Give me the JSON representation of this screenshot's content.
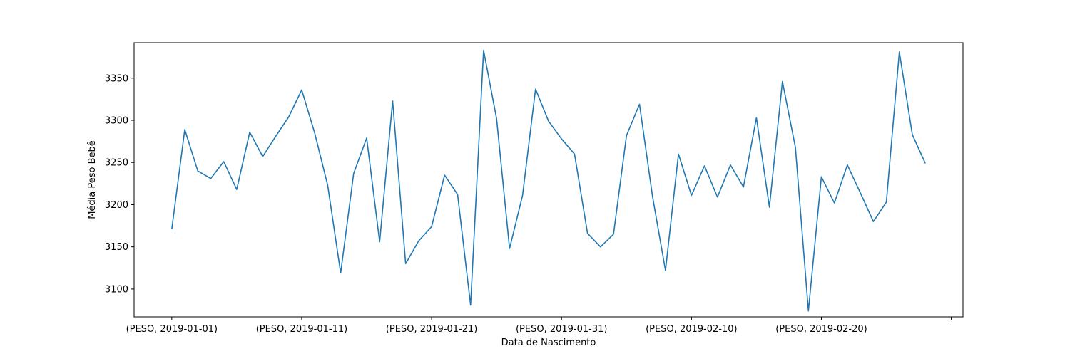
{
  "chart_data": {
    "type": "line",
    "title": "",
    "xlabel": "Data de Nascimento",
    "ylabel": "Média Peso Bebê",
    "xlim": [
      -2.9,
      60.9
    ],
    "ylim": [
      3067,
      3392
    ],
    "x_ticks": [
      {
        "x": 0,
        "label": "(PESO, 2019-01-01)"
      },
      {
        "x": 10,
        "label": "(PESO, 2019-01-11)"
      },
      {
        "x": 20,
        "label": "(PESO, 2019-01-21)"
      },
      {
        "x": 30,
        "label": "(PESO, 2019-01-31)"
      },
      {
        "x": 40,
        "label": "(PESO, 2019-02-10)"
      },
      {
        "x": 50,
        "label": "(PESO, 2019-02-20)"
      },
      {
        "x": 60,
        "label": ""
      }
    ],
    "y_ticks": [
      3100,
      3150,
      3200,
      3250,
      3300,
      3350
    ],
    "color": "#1f77b4",
    "series": [
      {
        "name": "PESO",
        "values": [
          3171,
          3289,
          3240,
          3231,
          3251,
          3218,
          3286,
          3257,
          3281,
          3304,
          3336,
          3285,
          3223,
          3119,
          3237,
          3279,
          3156,
          3323,
          3130,
          3157,
          3174,
          3235,
          3212,
          3081,
          3383,
          3302,
          3148,
          3211,
          3337,
          3299,
          3278,
          3260,
          3166,
          3150,
          3165,
          3282,
          3319,
          3210,
          3122,
          3260,
          3211,
          3246,
          3209,
          3247,
          3221,
          3303,
          3197,
          3346,
          3268,
          3074,
          3233,
          3202,
          3247,
          3214,
          3180,
          3203,
          3381,
          3283,
          3249
        ]
      }
    ]
  }
}
